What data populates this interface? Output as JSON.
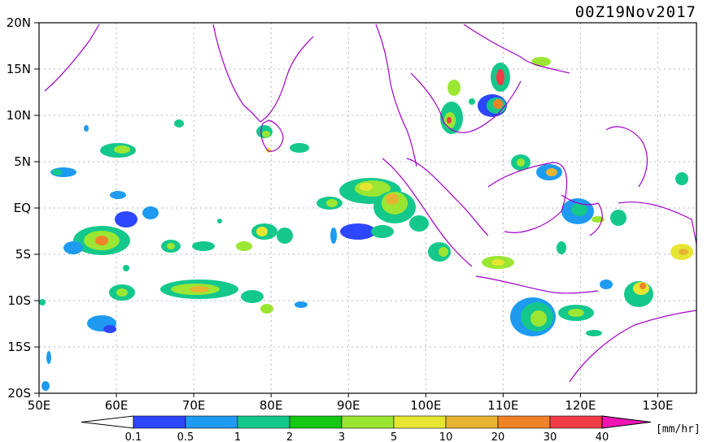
{
  "title": "00Z19Nov2017",
  "units": "[mm/hr]",
  "lat_ticks": [
    "20N",
    "15N",
    "10N",
    "5N",
    "EQ",
    "5S",
    "10S",
    "15S",
    "20S"
  ],
  "lon_ticks": [
    "50E",
    "60E",
    "70E",
    "80E",
    "90E",
    "100E",
    "110E",
    "120E",
    "130E"
  ],
  "colorbar": {
    "labels": [
      "0.1",
      "0.5",
      "1",
      "2",
      "3",
      "5",
      "10",
      "20",
      "30",
      "40"
    ],
    "colors": [
      "#2d46ff",
      "#1e9bf0",
      "#14c88c",
      "#14c814",
      "#9be632",
      "#e6e632",
      "#e6b432",
      "#f08228",
      "#f03c46",
      "#f014b4"
    ],
    "underflow_color": "#ffffff"
  },
  "coastline_color": "#a000c8"
}
